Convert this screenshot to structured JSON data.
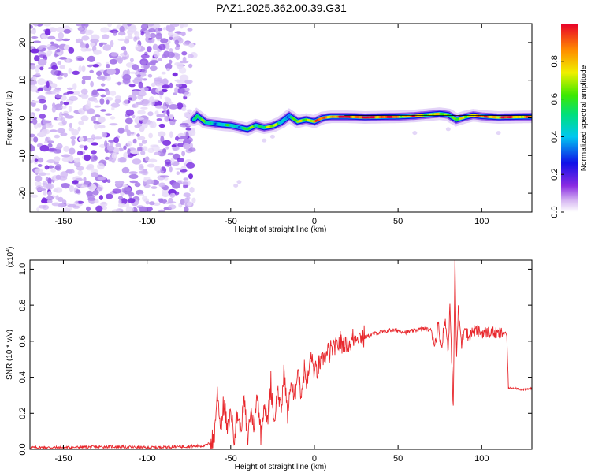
{
  "title": "PAZ1.2025.362.00.39.G31",
  "chart_data": [
    {
      "type": "heatmap",
      "xlabel": "Height of straight line (km)",
      "ylabel": "Frequency (Hz)",
      "xlim": [
        -170,
        130
      ],
      "ylim": [
        -25,
        25
      ],
      "x_ticks": [
        -150,
        -100,
        -50,
        0,
        50,
        100
      ],
      "y_ticks": [
        -20,
        -10,
        0,
        10,
        20
      ],
      "colorbar": {
        "label": "Normalized spectral amplitude",
        "range": [
          0,
          1
        ],
        "ticks": [
          0.0,
          0.2,
          0.4,
          0.6,
          0.8
        ]
      },
      "noise_region_x": [
        -170,
        -72
      ],
      "ridge": {
        "x": [
          -72,
          -70,
          -65,
          -60,
          -55,
          -50,
          -45,
          -40,
          -35,
          -30,
          -25,
          -20,
          -15,
          -10,
          -5,
          0,
          5,
          10,
          20,
          30,
          40,
          50,
          60,
          70,
          75,
          80,
          85,
          90,
          95,
          100,
          110,
          120,
          130
        ],
        "freq": [
          -0.5,
          0.5,
          -1.2,
          -1.5,
          -1.8,
          -2.0,
          -2.5,
          -3.0,
          -2.0,
          -2.6,
          -2.2,
          -1.2,
          0.5,
          -1.0,
          -0.5,
          -1.0,
          0.0,
          0.3,
          0.3,
          0.1,
          0.2,
          0.3,
          0.5,
          0.9,
          1.1,
          0.8,
          -0.5,
          0.2,
          0.7,
          0.4,
          0.1,
          0.2,
          0.3
        ],
        "amplitude": [
          0.55,
          0.55,
          0.45,
          0.5,
          0.4,
          0.45,
          0.5,
          0.55,
          0.5,
          0.7,
          0.6,
          0.5,
          0.45,
          0.6,
          0.75,
          0.85,
          0.8,
          0.9,
          0.95,
          0.95,
          0.95,
          0.85,
          0.8,
          0.7,
          0.6,
          0.75,
          0.55,
          0.65,
          0.9,
          0.8,
          0.9,
          0.85,
          0.8
        ]
      }
    },
    {
      "type": "line",
      "xlabel": "Height of straight line (km)",
      "ylabel": "SNR (10 * v/v)",
      "y_exponent": "(x10",
      "y_exponent_power": "4",
      "xlim": [
        -170,
        130
      ],
      "ylim": [
        0.0,
        1.05
      ],
      "x_ticks": [
        -150,
        -100,
        -50,
        0,
        50,
        100
      ],
      "y_ticks": [
        0.0,
        0.2,
        0.4,
        0.6,
        0.8,
        1.0
      ],
      "color": "#e8282d",
      "series": [
        {
          "name": "SNR",
          "x": [
            -170,
            -150,
            -120,
            -100,
            -80,
            -65,
            -60,
            -58,
            -56,
            -54,
            -52,
            -50,
            -48,
            -46,
            -44,
            -42,
            -40,
            -38,
            -36,
            -34,
            -32,
            -30,
            -28,
            -26,
            -24,
            -22,
            -20,
            -18,
            -16,
            -14,
            -12,
            -10,
            -8,
            -6,
            -4,
            -2,
            0,
            5,
            10,
            15,
            20,
            25,
            30,
            35,
            40,
            45,
            50,
            55,
            60,
            65,
            70,
            72,
            74,
            76,
            78,
            80,
            81,
            82,
            83,
            84,
            85,
            86,
            88,
            90,
            92,
            95,
            100,
            105,
            110,
            114,
            115,
            116,
            120,
            125,
            130
          ],
          "y": [
            0.01,
            0.01,
            0.015,
            0.01,
            0.015,
            0.02,
            0.05,
            0.32,
            0.12,
            0.26,
            0.1,
            0.22,
            0.08,
            0.2,
            0.1,
            0.28,
            0.05,
            0.22,
            0.12,
            0.33,
            0.08,
            0.26,
            0.15,
            0.37,
            0.14,
            0.34,
            0.2,
            0.44,
            0.18,
            0.38,
            0.26,
            0.46,
            0.3,
            0.44,
            0.38,
            0.53,
            0.42,
            0.5,
            0.55,
            0.59,
            0.58,
            0.63,
            0.62,
            0.64,
            0.65,
            0.66,
            0.66,
            0.65,
            0.66,
            0.67,
            0.66,
            0.58,
            0.69,
            0.57,
            0.72,
            0.56,
            0.8,
            0.5,
            0.24,
            1.05,
            0.5,
            0.78,
            0.58,
            0.7,
            0.62,
            0.66,
            0.65,
            0.65,
            0.64,
            0.65,
            0.63,
            0.34,
            0.34,
            0.33,
            0.34
          ]
        }
      ]
    }
  ]
}
